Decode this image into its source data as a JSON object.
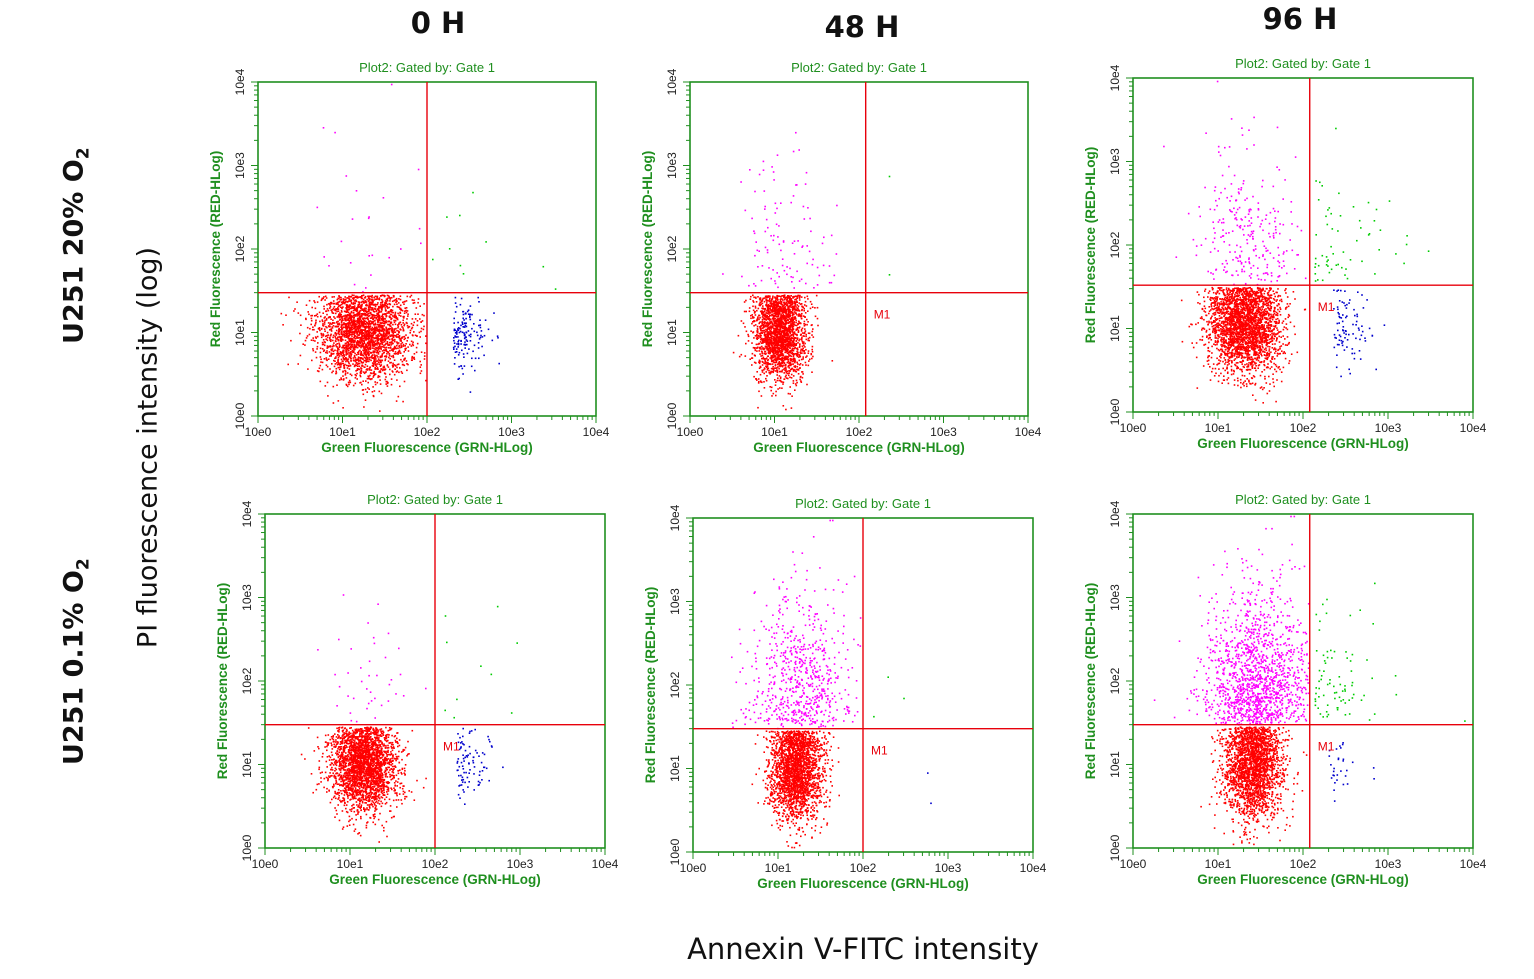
{
  "figure": {
    "column_headers": [
      "0 H",
      "48 H",
      "96 H"
    ],
    "row_labels": [
      {
        "text": "U251 20% O",
        "subscript": "2"
      },
      {
        "text": "U251 0.1% O",
        "subscript": "2"
      }
    ],
    "y_axis_label": "PI fluorescence intensity (log)",
    "x_axis_label": "Annexin V-FITC intensity"
  },
  "colors": {
    "frame": "#1f8f1f",
    "gate_lines": "#e8000b",
    "viable": "#ff0000",
    "early_apoptotic": "#0000cc",
    "late_apoptotic": "#00cc00",
    "necrotic": "#ff00ff",
    "marker_text": "#e8000b"
  },
  "chart_data": [
    {
      "type": "scatter",
      "panel": "0 H / U251 20% O2",
      "subtitle": "Plot2:  Gated by:  Gate 1",
      "xlabel": "Green Fluorescence (GRN-HLog)",
      "ylabel": "Red Fluorescence (RED-HLog)",
      "xscale": "log",
      "yscale": "log",
      "xlim": [
        1,
        10000
      ],
      "ylim": [
        1,
        10000
      ],
      "xticks": [
        "10e0",
        "10e1",
        "10e2",
        "10e3",
        "10e4"
      ],
      "yticks": [
        "10e0",
        "10e1",
        "10e2",
        "10e3",
        "10e4"
      ],
      "gate_x": 100,
      "gate_y": 30,
      "marker": "",
      "viable": {
        "n": 2600,
        "x_center": 1.25,
        "x_spread": 0.5,
        "y_center": 1.0,
        "y_spread": 0.28
      },
      "early_apoptotic": {
        "n": 150,
        "x_center": 2.3,
        "x_spread": 0.2
      },
      "late_apoptotic": {
        "n": 10
      },
      "necrotic": {
        "n": 25
      }
    },
    {
      "type": "scatter",
      "panel": "48 H / U251 20% O2",
      "subtitle": "Plot2:  Gated by:  Gate 1",
      "xlabel": "Green Fluorescence (GRN-HLog)",
      "ylabel": "Red Fluorescence (RED-HLog)",
      "xscale": "log",
      "yscale": "log",
      "xlim": [
        1,
        10000
      ],
      "ylim": [
        1,
        10000
      ],
      "xticks": [
        "10e0",
        "10e1",
        "10e2",
        "10e3",
        "10e4"
      ],
      "yticks": [
        "10e0",
        "10e1",
        "10e2",
        "10e3",
        "10e4"
      ],
      "gate_x": 120,
      "gate_y": 30,
      "marker": "M1",
      "viable": {
        "n": 2200,
        "x_center": 1.05,
        "x_spread": 0.28,
        "y_center": 1.0,
        "y_spread": 0.28
      },
      "early_apoptotic": {
        "n": 0,
        "x_center": 2.3,
        "x_spread": 0.2
      },
      "late_apoptotic": {
        "n": 2
      },
      "necrotic": {
        "n": 110
      }
    },
    {
      "type": "scatter",
      "panel": "96 H / U251 20% O2",
      "subtitle": "Plot2:  Gated by:  Gate 1",
      "xlabel": "Green Fluorescence (GRN-HLog)",
      "ylabel": "Red Fluorescence (RED-HLog)",
      "xscale": "log",
      "yscale": "log",
      "xlim": [
        1,
        10000
      ],
      "ylim": [
        1,
        10000
      ],
      "xticks": [
        "10e0",
        "10e1",
        "10e2",
        "10e3",
        "10e4"
      ],
      "yticks": [
        "10e0",
        "10e1",
        "10e2",
        "10e3",
        "10e4"
      ],
      "gate_x": 120,
      "gate_y": 33,
      "marker": "M1",
      "viable": {
        "n": 2600,
        "x_center": 1.3,
        "x_spread": 0.4,
        "y_center": 1.05,
        "y_spread": 0.3
      },
      "early_apoptotic": {
        "n": 90,
        "x_center": 2.35,
        "x_spread": 0.22
      },
      "late_apoptotic": {
        "n": 60
      },
      "necrotic": {
        "n": 260
      }
    },
    {
      "type": "scatter",
      "panel": "0 H / U251 0.1% O2",
      "subtitle": "Plot2:  Gated by:  Gate 1",
      "xlabel": "Green Fluorescence (GRN-HLog)",
      "ylabel": "Red Fluorescence (RED-HLog)",
      "xscale": "log",
      "yscale": "log",
      "xlim": [
        1,
        10000
      ],
      "ylim": [
        1,
        10000
      ],
      "xticks": [
        "10e0",
        "10e1",
        "10e2",
        "10e3",
        "10e4"
      ],
      "yticks": [
        "10e0",
        "10e1",
        "10e2",
        "10e3",
        "10e4"
      ],
      "gate_x": 100,
      "gate_y": 30,
      "marker": "M1",
      "viable": {
        "n": 2600,
        "x_center": 1.15,
        "x_spread": 0.35,
        "y_center": 1.0,
        "y_spread": 0.28
      },
      "early_apoptotic": {
        "n": 90,
        "x_center": 2.25,
        "x_spread": 0.2
      },
      "late_apoptotic": {
        "n": 10
      },
      "necrotic": {
        "n": 40
      }
    },
    {
      "type": "scatter",
      "panel": "48 H / U251 0.1% O2",
      "subtitle": "Plot2:  Gated by:  Gate 1",
      "xlabel": "Green Fluorescence (GRN-HLog)",
      "ylabel": "Red Fluorescence (RED-HLog)",
      "xscale": "log",
      "yscale": "log",
      "xlim": [
        1,
        10000
      ],
      "ylim": [
        1,
        10000
      ],
      "xticks": [
        "10e0",
        "10e1",
        "10e2",
        "10e3",
        "10e4"
      ],
      "yticks": [
        "10e0",
        "10e1",
        "10e2",
        "10e3",
        "10e4"
      ],
      "gate_x": 100,
      "gate_y": 30,
      "marker": "M1",
      "viable": {
        "n": 2300,
        "x_center": 1.2,
        "x_spread": 0.28,
        "y_center": 1.0,
        "y_spread": 0.3
      },
      "early_apoptotic": {
        "n": 2,
        "x_center": 2.6,
        "x_spread": 0.1
      },
      "late_apoptotic": {
        "n": 3
      },
      "necrotic": {
        "n": 650
      }
    },
    {
      "type": "scatter",
      "panel": "96 H / U251 0.1% O2",
      "subtitle": "Plot2:  Gated by:  Gate 1",
      "xlabel": "Green Fluorescence (GRN-HLog)",
      "ylabel": "Red Fluorescence (RED-HLog)",
      "xscale": "log",
      "yscale": "log",
      "xlim": [
        1,
        10000
      ],
      "ylim": [
        1,
        10000
      ],
      "xticks": [
        "10e0",
        "10e1",
        "10e2",
        "10e3",
        "10e4"
      ],
      "yticks": [
        "10e0",
        "10e1",
        "10e2",
        "10e3",
        "10e4"
      ],
      "gate_x": 120,
      "gate_y": 30,
      "marker": "M1",
      "viable": {
        "n": 2200,
        "x_center": 1.4,
        "x_spread": 0.32,
        "y_center": 1.0,
        "y_spread": 0.32
      },
      "early_apoptotic": {
        "n": 30,
        "x_center": 2.3,
        "x_spread": 0.2
      },
      "late_apoptotic": {
        "n": 80
      },
      "necrotic": {
        "n": 1400
      }
    }
  ]
}
